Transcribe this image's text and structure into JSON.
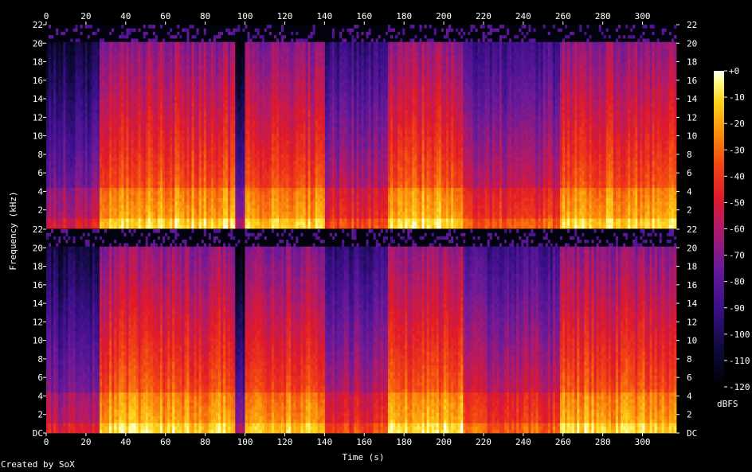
{
  "chart_data": {
    "type": "heatmap",
    "xlabel": "Time (s)",
    "ylabel": "Frequency (kHz)",
    "colorbar_label": "dBFS",
    "credit": "Created by SoX",
    "xlim": [
      0,
      317
    ],
    "ylim": [
      0,
      22
    ],
    "x_ticks": [
      "0",
      "20",
      "40",
      "60",
      "80",
      "100",
      "120",
      "140",
      "160",
      "180",
      "200",
      "220",
      "240",
      "260",
      "280",
      "300"
    ],
    "x_tick_values": [
      0,
      20,
      40,
      60,
      80,
      100,
      120,
      140,
      160,
      180,
      200,
      220,
      240,
      260,
      280,
      300
    ],
    "y_ticks": [
      "DC",
      "2",
      "4",
      "6",
      "8",
      "10",
      "12",
      "14",
      "16",
      "18",
      "20",
      "22"
    ],
    "y_tick_values": [
      0,
      2,
      4,
      6,
      8,
      10,
      12,
      14,
      16,
      18,
      20,
      22
    ],
    "colorbar_ticks": [
      "+0",
      "-10",
      "-20",
      "-30",
      "-40",
      "-50",
      "-60",
      "-70",
      "-80",
      "-90",
      "-100",
      "-110",
      "-120"
    ],
    "colorbar_range": [
      -120,
      0
    ],
    "channels": 2,
    "segments": [
      {
        "start": 0,
        "end": 27,
        "level": 0.48
      },
      {
        "start": 27,
        "end": 95,
        "level": 0.8
      },
      {
        "start": 95,
        "end": 100,
        "level": 0.4
      },
      {
        "start": 100,
        "end": 140,
        "level": 0.78
      },
      {
        "start": 140,
        "end": 172,
        "level": 0.58
      },
      {
        "start": 172,
        "end": 210,
        "level": 0.82
      },
      {
        "start": 210,
        "end": 258,
        "level": 0.62
      },
      {
        "start": 258,
        "end": 317,
        "level": 0.8
      }
    ]
  }
}
